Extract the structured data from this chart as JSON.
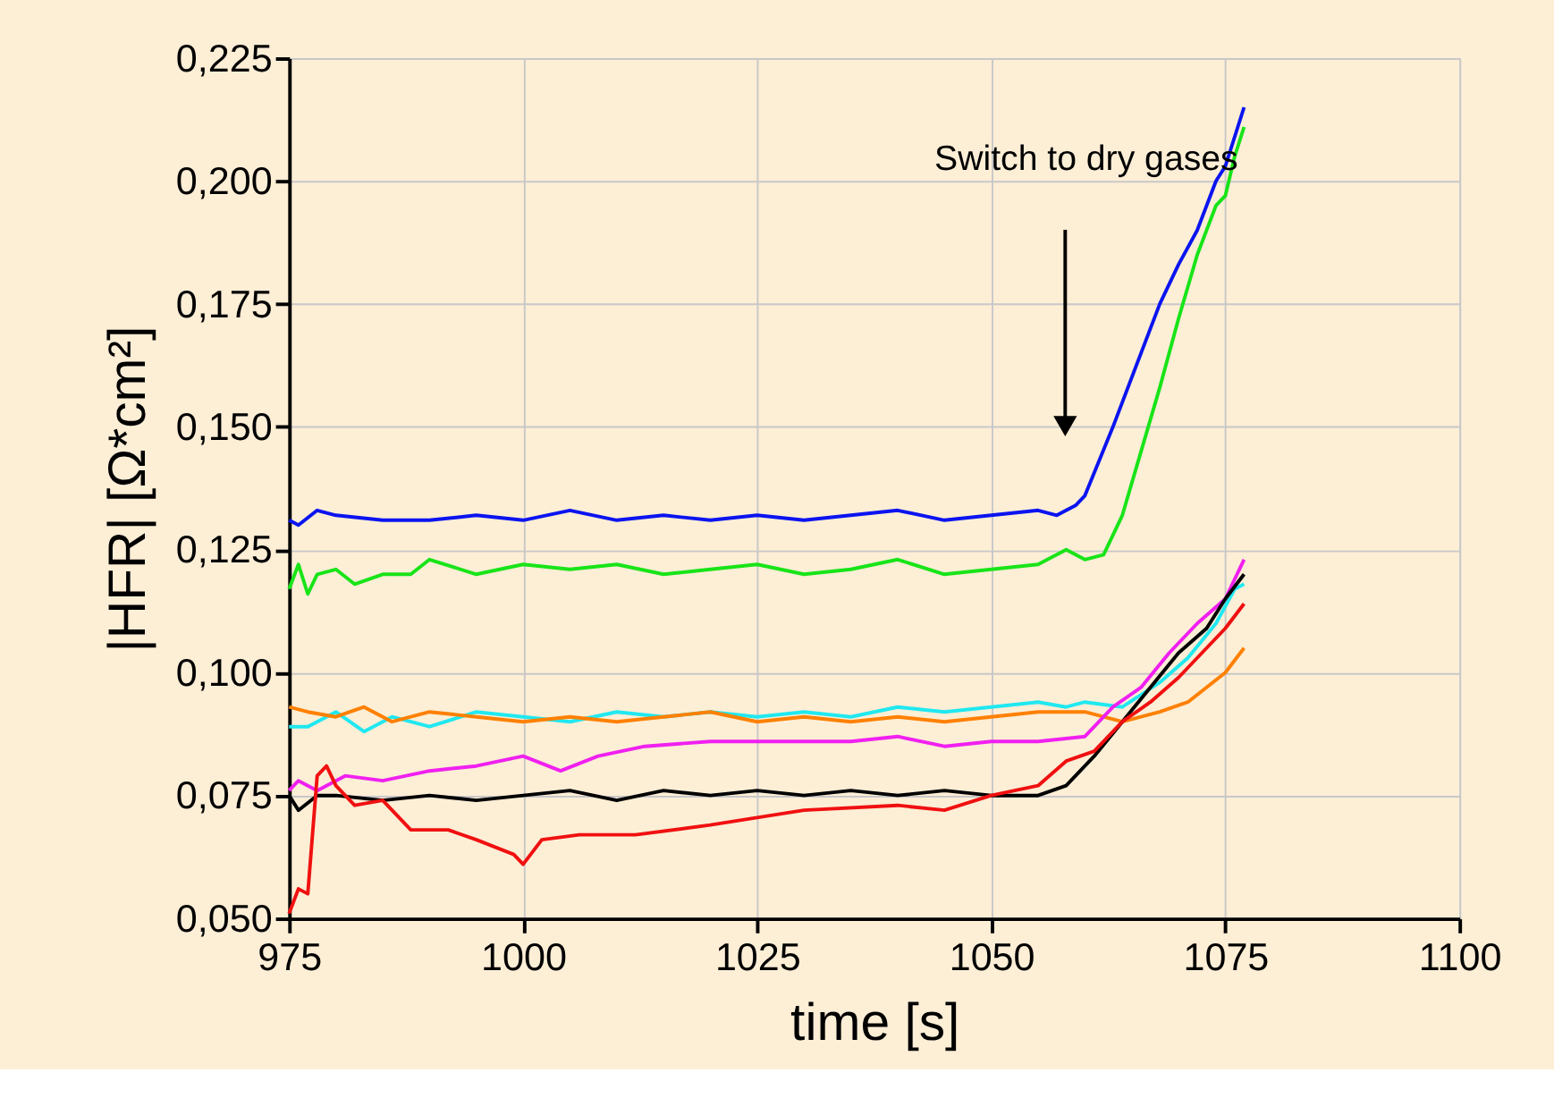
{
  "chart_data": {
    "type": "line",
    "xlabel": "time [s]",
    "ylabel": "|HFR| [Ω*cm²]",
    "xlim": [
      975,
      1100
    ],
    "xticks": [
      975,
      1000,
      1025,
      1050,
      1075,
      1100
    ],
    "ylim": [
      0.05,
      0.225
    ],
    "yticks": [
      {
        "value": 0.05,
        "label": "0,050"
      },
      {
        "value": 0.075,
        "label": "0,075"
      },
      {
        "value": 0.1,
        "label": "0,100"
      },
      {
        "value": 0.125,
        "label": "0,125"
      },
      {
        "value": 0.15,
        "label": "0,150"
      },
      {
        "value": 0.175,
        "label": "0,175"
      },
      {
        "value": 0.2,
        "label": "0,200"
      },
      {
        "value": 0.225,
        "label": "0,225"
      }
    ],
    "grid": true,
    "legend": false,
    "marker": "none",
    "line_style": "solid",
    "annotations": [
      "Switch to dry gases"
    ],
    "series": [
      {
        "color": "#0a14f0",
        "x": [
          975,
          976,
          978,
          980,
          985,
          990,
          995,
          1000,
          1005,
          1010,
          1015,
          1020,
          1025,
          1030,
          1035,
          1040,
          1045,
          1050,
          1055,
          1057,
          1059,
          1060,
          1063,
          1066,
          1068,
          1070,
          1072,
          1074,
          1075,
          1077
        ],
        "values": [
          0.131,
          0.13,
          0.133,
          0.132,
          0.131,
          0.131,
          0.132,
          0.131,
          0.133,
          0.131,
          0.132,
          0.131,
          0.132,
          0.131,
          0.132,
          0.133,
          0.131,
          0.132,
          0.133,
          0.132,
          0.134,
          0.136,
          0.15,
          0.165,
          0.175,
          0.183,
          0.19,
          0.2,
          0.203,
          0.215
        ]
      },
      {
        "color": "#18e418",
        "x": [
          975,
          976,
          977,
          978,
          980,
          982,
          985,
          988,
          990,
          995,
          1000,
          1005,
          1010,
          1015,
          1020,
          1025,
          1030,
          1035,
          1040,
          1045,
          1050,
          1055,
          1058,
          1060,
          1062,
          1064,
          1066,
          1068,
          1070,
          1072,
          1074,
          1075,
          1076,
          1077
        ],
        "values": [
          0.117,
          0.122,
          0.116,
          0.12,
          0.121,
          0.118,
          0.12,
          0.12,
          0.123,
          0.12,
          0.122,
          0.121,
          0.122,
          0.12,
          0.121,
          0.122,
          0.12,
          0.121,
          0.123,
          0.12,
          0.121,
          0.122,
          0.125,
          0.123,
          0.124,
          0.132,
          0.145,
          0.158,
          0.172,
          0.185,
          0.195,
          0.197,
          0.205,
          0.211
        ]
      },
      {
        "color": "#20e8f0",
        "x": [
          975,
          977,
          980,
          983,
          986,
          990,
          995,
          1000,
          1005,
          1010,
          1015,
          1020,
          1025,
          1030,
          1035,
          1040,
          1045,
          1050,
          1055,
          1058,
          1060,
          1064,
          1068,
          1071,
          1074,
          1076,
          1077
        ],
        "values": [
          0.089,
          0.089,
          0.092,
          0.088,
          0.091,
          0.089,
          0.092,
          0.091,
          0.09,
          0.092,
          0.091,
          0.092,
          0.091,
          0.092,
          0.091,
          0.093,
          0.092,
          0.093,
          0.094,
          0.093,
          0.094,
          0.093,
          0.098,
          0.103,
          0.11,
          0.117,
          0.118
        ]
      },
      {
        "color": "#ff8000",
        "x": [
          975,
          977,
          980,
          983,
          986,
          990,
          995,
          1000,
          1005,
          1010,
          1015,
          1020,
          1025,
          1030,
          1035,
          1040,
          1045,
          1050,
          1055,
          1058,
          1060,
          1064,
          1068,
          1071,
          1073,
          1075,
          1077
        ],
        "values": [
          0.093,
          0.092,
          0.091,
          0.093,
          0.09,
          0.092,
          0.091,
          0.09,
          0.091,
          0.09,
          0.091,
          0.092,
          0.09,
          0.091,
          0.09,
          0.091,
          0.09,
          0.091,
          0.092,
          0.092,
          0.092,
          0.09,
          0.092,
          0.094,
          0.097,
          0.1,
          0.105
        ]
      },
      {
        "color": "#f020f0",
        "x": [
          975,
          976,
          978,
          981,
          985,
          990,
          995,
          1000,
          1004,
          1008,
          1013,
          1020,
          1028,
          1035,
          1040,
          1045,
          1050,
          1055,
          1060,
          1063,
          1066,
          1069,
          1072,
          1075,
          1077
        ],
        "values": [
          0.076,
          0.078,
          0.076,
          0.079,
          0.078,
          0.08,
          0.081,
          0.083,
          0.08,
          0.083,
          0.085,
          0.086,
          0.086,
          0.086,
          0.087,
          0.085,
          0.086,
          0.086,
          0.087,
          0.093,
          0.097,
          0.104,
          0.11,
          0.115,
          0.123
        ]
      },
      {
        "color": "#000000",
        "x": [
          975,
          976,
          978,
          980,
          985,
          990,
          995,
          1000,
          1005,
          1010,
          1015,
          1020,
          1025,
          1030,
          1035,
          1040,
          1045,
          1050,
          1055,
          1058,
          1061,
          1064,
          1067,
          1070,
          1073,
          1075,
          1077
        ],
        "values": [
          0.075,
          0.072,
          0.075,
          0.075,
          0.074,
          0.075,
          0.074,
          0.075,
          0.076,
          0.074,
          0.076,
          0.075,
          0.076,
          0.075,
          0.076,
          0.075,
          0.076,
          0.075,
          0.075,
          0.077,
          0.083,
          0.09,
          0.097,
          0.104,
          0.109,
          0.115,
          0.12
        ]
      },
      {
        "color": "#f01010",
        "x": [
          975,
          976,
          977,
          978,
          979,
          980,
          982,
          985,
          988,
          992,
          995,
          999,
          1000,
          1002,
          1006,
          1012,
          1020,
          1030,
          1040,
          1045,
          1050,
          1055,
          1058,
          1061,
          1064,
          1067,
          1070,
          1073,
          1075,
          1077
        ],
        "values": [
          0.051,
          0.056,
          0.055,
          0.079,
          0.081,
          0.077,
          0.073,
          0.074,
          0.068,
          0.068,
          0.066,
          0.063,
          0.061,
          0.066,
          0.067,
          0.067,
          0.069,
          0.072,
          0.073,
          0.072,
          0.075,
          0.077,
          0.082,
          0.084,
          0.09,
          0.094,
          0.099,
          0.105,
          0.109,
          0.114
        ]
      }
    ]
  }
}
